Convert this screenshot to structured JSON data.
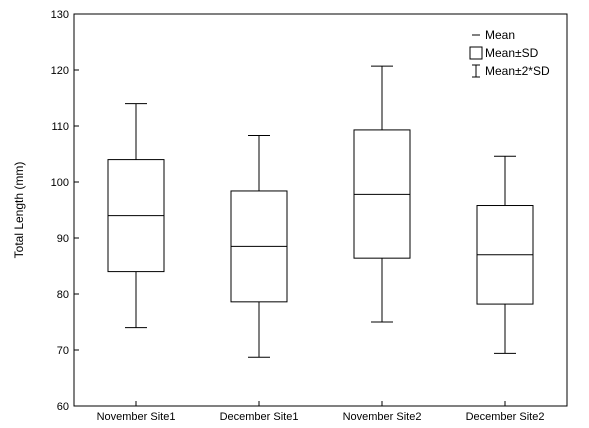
{
  "chart_data": {
    "type": "box",
    "title": "",
    "xlabel": "",
    "ylabel": "Total Length (mm)",
    "ylim": [
      60,
      130
    ],
    "yticks": [
      60,
      70,
      80,
      90,
      100,
      110,
      120,
      130
    ],
    "categories": [
      "November Site1",
      "December Site1",
      "November Site2",
      "December Site2"
    ],
    "series": [
      {
        "category": "November Site1",
        "mean": 94.0,
        "box_low": 84.0,
        "box_high": 104.0,
        "whisker_low": 74.0,
        "whisker_high": 114.0
      },
      {
        "category": "December Site1",
        "mean": 88.5,
        "box_low": 78.6,
        "box_high": 98.4,
        "whisker_low": 68.7,
        "whisker_high": 108.3
      },
      {
        "category": "November Site2",
        "mean": 97.8,
        "box_low": 86.4,
        "box_high": 109.3,
        "whisker_low": 75.0,
        "whisker_high": 120.7
      },
      {
        "category": "December Site2",
        "mean": 87.0,
        "box_low": 78.2,
        "box_high": 95.8,
        "whisker_low": 69.4,
        "whisker_high": 104.6
      }
    ],
    "legend": {
      "position": "top-right",
      "entries": [
        {
          "symbol": "line",
          "label": "Mean"
        },
        {
          "symbol": "box",
          "label": "Mean±SD"
        },
        {
          "symbol": "whisker",
          "label": "Mean±2*SD"
        }
      ]
    },
    "grid": false
  }
}
